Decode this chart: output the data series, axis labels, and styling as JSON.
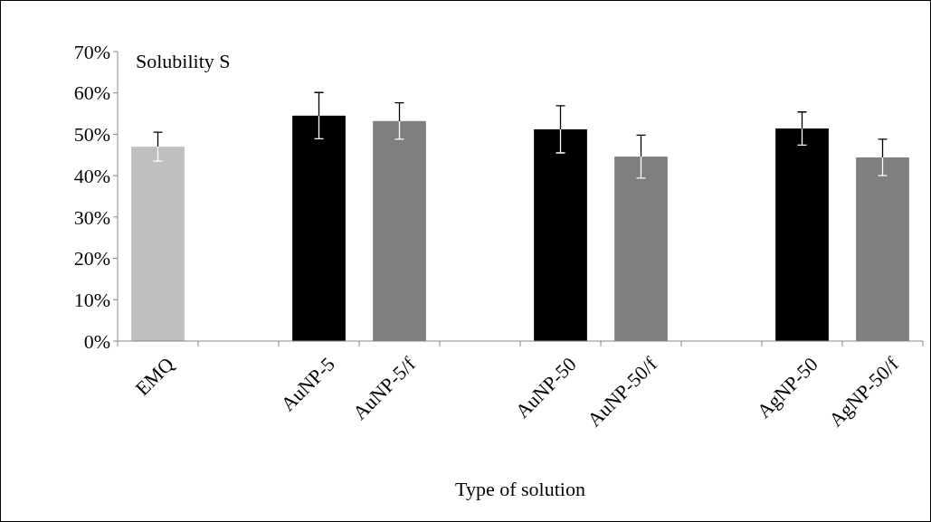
{
  "chart_data": {
    "type": "bar",
    "title": "Solubility S",
    "xlabel": "Type of solution",
    "categories": [
      "EMQ",
      null,
      "AuNP-5",
      "AuNP-5/f",
      null,
      "AuNP-50",
      "AuNP-50/f",
      null,
      "AgNP-50",
      "AgNP-50/f"
    ],
    "values": [
      47,
      null,
      54.5,
      53.2,
      null,
      51.2,
      44.6,
      null,
      51.4,
      44.4
    ],
    "colors": [
      "#bfbfbf",
      null,
      "#000000",
      "#7f7f7f",
      null,
      "#000000",
      "#7f7f7f",
      null,
      "#000000",
      "#7f7f7f"
    ],
    "errors": [
      3.5,
      null,
      5.6,
      4.4,
      null,
      5.7,
      5.2,
      null,
      4,
      4.4
    ],
    "ylim": [
      0,
      70
    ],
    "yticks": [
      {
        "value": 0,
        "label": "0%"
      },
      {
        "value": 10,
        "label": "10%"
      },
      {
        "value": 20,
        "label": "20%"
      },
      {
        "value": 30,
        "label": "30%"
      },
      {
        "value": 40,
        "label": "40%"
      },
      {
        "value": 50,
        "label": "50%"
      },
      {
        "value": 60,
        "label": "60%"
      },
      {
        "value": 70,
        "label": "70%"
      }
    ],
    "grid": false
  }
}
